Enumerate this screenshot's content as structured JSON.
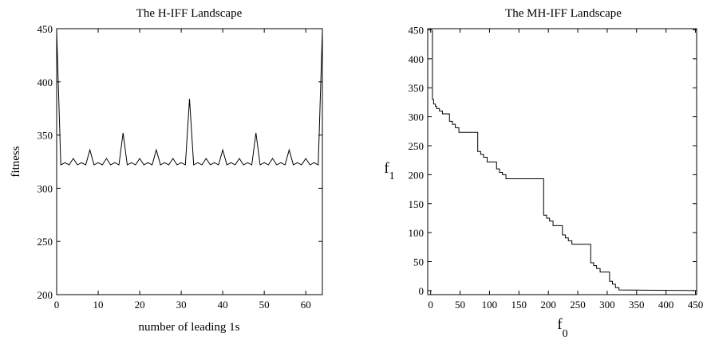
{
  "chart_data": [
    {
      "type": "line",
      "title": "The H-IFF Landscape",
      "xlabel": "number of leading 1s",
      "ylabel": "fitness",
      "xlim": [
        0,
        64
      ],
      "ylim": [
        200,
        450
      ],
      "xticks": [
        0,
        10,
        20,
        30,
        40,
        50,
        60
      ],
      "yticks": [
        200,
        250,
        300,
        350,
        400,
        450
      ],
      "grid": false,
      "series": [
        {
          "x": [
            0,
            1,
            2,
            3,
            4,
            5,
            6,
            7,
            8,
            9,
            10,
            11,
            12,
            13,
            14,
            15,
            16,
            17,
            18,
            19,
            20,
            21,
            22,
            23,
            24,
            25,
            26,
            27,
            28,
            29,
            30,
            31,
            32,
            33,
            34,
            35,
            36,
            37,
            38,
            39,
            40,
            41,
            42,
            43,
            44,
            45,
            46,
            47,
            48,
            49,
            50,
            51,
            52,
            53,
            54,
            55,
            56,
            57,
            58,
            59,
            60,
            61,
            62,
            63,
            64
          ],
          "values": [
            448,
            322,
            324,
            322,
            328,
            322,
            324,
            322,
            336,
            322,
            324,
            322,
            328,
            322,
            324,
            322,
            352,
            322,
            324,
            322,
            328,
            322,
            324,
            322,
            336,
            322,
            324,
            322,
            328,
            322,
            324,
            322,
            384,
            322,
            324,
            322,
            328,
            322,
            324,
            322,
            336,
            322,
            324,
            322,
            328,
            322,
            324,
            322,
            352,
            322,
            324,
            322,
            328,
            322,
            324,
            322,
            336,
            322,
            324,
            322,
            328,
            322,
            324,
            322,
            448
          ]
        }
      ]
    },
    {
      "type": "line",
      "title": "The MH-IFF Landscape",
      "xlabel": "f",
      "xlabel_sub": "0",
      "ylabel": "f",
      "ylabel_sub": "1",
      "xlim": [
        -5,
        452
      ],
      "ylim": [
        -7,
        452
      ],
      "xticks": [
        0,
        50,
        100,
        150,
        200,
        250,
        300,
        350,
        400,
        450
      ],
      "yticks": [
        0,
        50,
        100,
        150,
        200,
        250,
        300,
        350,
        400,
        450
      ],
      "grid": false,
      "series": [
        {
          "x": [
            3,
            3,
            5,
            5,
            8,
            8,
            10,
            10,
            15,
            15,
            20,
            20,
            32,
            32,
            37,
            37,
            42,
            42,
            48,
            48,
            80,
            80,
            85,
            85,
            90,
            90,
            96,
            96,
            112,
            112,
            117,
            117,
            122,
            122,
            128,
            128,
            192,
            192,
            197,
            197,
            202,
            202,
            208,
            208,
            224,
            224,
            229,
            229,
            234,
            234,
            240,
            240,
            272,
            272,
            277,
            277,
            282,
            282,
            288,
            288,
            304,
            304,
            309,
            309,
            314,
            314,
            320,
            320,
            448
          ],
          "values": [
            450,
            330,
            330,
            322,
            322,
            318,
            318,
            314,
            314,
            310,
            310,
            305,
            305,
            292,
            292,
            287,
            287,
            281,
            281,
            273,
            273,
            240,
            240,
            235,
            235,
            230,
            230,
            222,
            222,
            210,
            210,
            204,
            204,
            200,
            200,
            193,
            193,
            130,
            130,
            125,
            125,
            120,
            120,
            112,
            112,
            96,
            96,
            91,
            91,
            86,
            86,
            80,
            80,
            48,
            48,
            43,
            43,
            38,
            38,
            32,
            32,
            16,
            16,
            11,
            11,
            5,
            5,
            1,
            0
          ]
        }
      ]
    }
  ]
}
